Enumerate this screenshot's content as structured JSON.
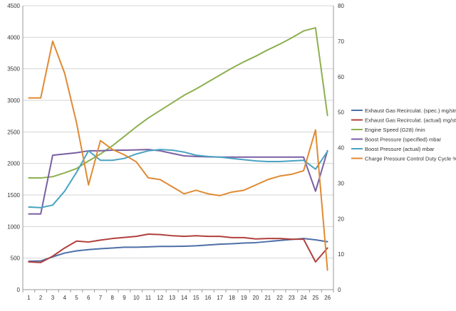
{
  "chart_data": {
    "type": "line",
    "title": "",
    "x": [
      1,
      2,
      3,
      4,
      5,
      6,
      7,
      8,
      9,
      10,
      11,
      12,
      13,
      14,
      15,
      16,
      17,
      18,
      19,
      20,
      21,
      22,
      23,
      24,
      25,
      26
    ],
    "xlabel": "",
    "ylabel": "",
    "y_left": {
      "range": [
        0,
        4500
      ],
      "ticks": [
        0,
        500,
        1000,
        1500,
        2000,
        2500,
        3000,
        3500,
        4000,
        4500
      ]
    },
    "y_right": {
      "range": [
        0,
        80
      ],
      "ticks": [
        0,
        10,
        20,
        30,
        40,
        50,
        60,
        70,
        80
      ]
    },
    "grid": "horizontal",
    "legend_position": "right",
    "series": [
      {
        "name": "Exhaust Gas Recirculat. (spec.)  mg/str",
        "color": "#4e6fa8",
        "axis": "left",
        "values": [
          450,
          455,
          520,
          580,
          615,
          635,
          648,
          660,
          672,
          672,
          678,
          685,
          685,
          688,
          695,
          708,
          720,
          728,
          738,
          745,
          762,
          780,
          795,
          810,
          790,
          760
        ]
      },
      {
        "name": "Exhaust Gas Recirculat. (actual)  mg/str",
        "color": "#b0403d",
        "axis": "left",
        "values": [
          440,
          430,
          530,
          660,
          770,
          755,
          785,
          810,
          828,
          845,
          880,
          873,
          855,
          845,
          855,
          845,
          845,
          825,
          825,
          803,
          810,
          810,
          800,
          800,
          440,
          660
        ]
      },
      {
        "name": "Engine Speed (G28)  /min",
        "color": "#8db050",
        "axis": "left",
        "values": [
          1770,
          1770,
          1790,
          1850,
          1920,
          2040,
          2150,
          2280,
          2430,
          2580,
          2720,
          2840,
          2960,
          3080,
          3180,
          3290,
          3400,
          3510,
          3610,
          3700,
          3800,
          3890,
          3990,
          4100,
          4150,
          2760
        ]
      },
      {
        "name": "Boost Pressure (specified)  mbar",
        "color": "#7a5fa2",
        "axis": "left",
        "values": [
          1200,
          1200,
          2130,
          2150,
          2170,
          2200,
          2200,
          2210,
          2210,
          2215,
          2220,
          2200,
          2160,
          2120,
          2110,
          2105,
          2100,
          2100,
          2100,
          2100,
          2100,
          2100,
          2100,
          2100,
          1560,
          2200
        ]
      },
      {
        "name": "Boost Pressure (actual)  mbar",
        "color": "#4aa3c2",
        "axis": "left",
        "values": [
          1310,
          1300,
          1340,
          1560,
          1860,
          2200,
          2050,
          2050,
          2080,
          2150,
          2200,
          2220,
          2210,
          2180,
          2130,
          2110,
          2100,
          2080,
          2060,
          2040,
          2030,
          2030,
          2040,
          2050,
          1910,
          2190
        ]
      },
      {
        "name": "Charge Pressure Control Duty Cycle  %",
        "color": "#e08a32",
        "axis": "right",
        "values": [
          54,
          54,
          70,
          61,
          47,
          29.5,
          42,
          39.5,
          38,
          36,
          31.5,
          31,
          29,
          27,
          28,
          27,
          26.5,
          27.5,
          28,
          29.5,
          31,
          32,
          32.5,
          33.5,
          45,
          5.5
        ]
      }
    ]
  }
}
